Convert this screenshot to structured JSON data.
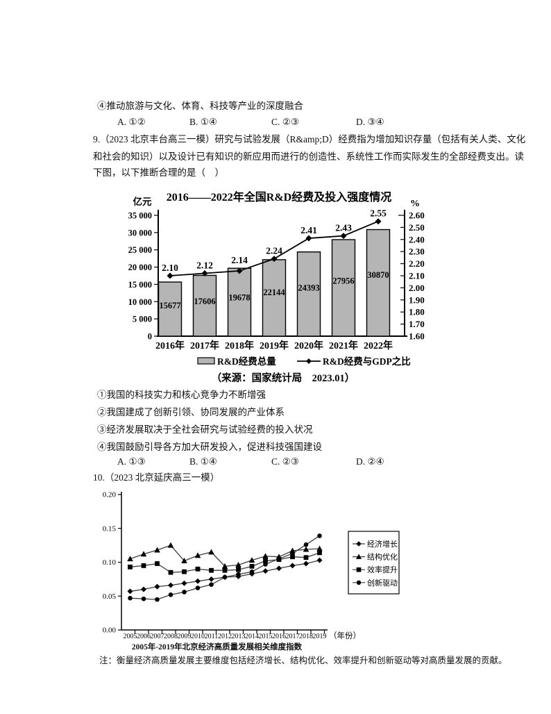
{
  "q8": {
    "statement4": "④推动旅游与文化、体育、科技等产业的深度融合",
    "options": [
      "A. ①②",
      "B. ①④",
      "C. ②③",
      "D. ③④"
    ]
  },
  "q9": {
    "lines": [
      "9.（2023 北京丰台高三一模）研究与试验发展（R&amp;D）经费指为增加知识存量（包括有关人类、文化",
      "和社会的知识）以及设计已有知识的新应用而进行的创造性、系统性工作而实际发生的全部经费支出。读",
      "下图，以下推断合理的是（　）"
    ],
    "statements": [
      "①我国的科技实力和核心竞争力不断增强",
      "②我国建成了创新引领、协同发展的产业体系",
      "③经济发展取决于全社会研究与试验经费的投入状况",
      "④我国鼓励引导各方加大研发投入，促进科技强国建设"
    ],
    "options": [
      "A. ①③",
      "B. ①④",
      "C. ②③",
      "D. ②④"
    ]
  },
  "q10": {
    "header": "10.（2023 北京延庆高三一模）",
    "chart_caption": "2005年-2019年北京经济高质量发展相关维度指数",
    "note": "注：衡量经济高质量发展主要维度包括经济增长、结构优化、效率提升和创新驱动等对高质量发展的贡献。"
  },
  "chart_data": [
    {
      "id": "rd-expenditure",
      "type": "bar+line",
      "title": "2016——2022年全国R&D经费及投入强度情况",
      "categories": [
        "2016年",
        "2017年",
        "2018年",
        "2019年",
        "2020年",
        "2021年",
        "2022年"
      ],
      "bar_series": {
        "name": "R&D经费总量",
        "unit": "亿元",
        "values": [
          15677,
          17606,
          19678,
          22144,
          24393,
          27956,
          30870
        ],
        "color": "#b5b5b5"
      },
      "line_series": {
        "name": "R&D经费与GDP之比",
        "unit": "%",
        "values": [
          2.1,
          2.12,
          2.14,
          2.24,
          2.41,
          2.43,
          2.55
        ]
      },
      "left_axis": {
        "label": "亿元",
        "min": 0,
        "max": 35000,
        "step": 5000,
        "tick_labels": [
          "0",
          "5 000",
          "10 000",
          "15 000",
          "20 000",
          "25 000",
          "30 000",
          "35 000"
        ]
      },
      "right_axis": {
        "label": "%",
        "min": 1.6,
        "max": 2.6,
        "step": 0.1
      },
      "legend_position": "bottom",
      "grid": false,
      "source": "（来源：国家统计局　2023.01）"
    },
    {
      "id": "beijing-quality-index",
      "type": "line",
      "title": "2005年-2019年北京经济高质量发展相关维度指数",
      "x": [
        2005,
        2006,
        2007,
        2008,
        2009,
        2010,
        2011,
        2012,
        2013,
        2014,
        2015,
        2016,
        2017,
        2018,
        2019
      ],
      "xlabel": "（年份）",
      "yaxis": {
        "min": 0,
        "max": 0.2,
        "step": 0.05,
        "tick_labels": [
          "0.00",
          "0.05",
          "0.10",
          "0.15",
          "0.20"
        ]
      },
      "series": [
        {
          "name": "经济增长",
          "marker": "diamond",
          "values": [
            0.057,
            0.06,
            0.064,
            0.066,
            0.069,
            0.072,
            0.075,
            0.078,
            0.079,
            0.083,
            0.087,
            0.091,
            0.095,
            0.098,
            0.103
          ]
        },
        {
          "name": "结构优化",
          "marker": "triangle",
          "values": [
            0.105,
            0.112,
            0.118,
            0.125,
            0.102,
            0.11,
            0.115,
            0.094,
            0.096,
            0.103,
            0.109,
            0.108,
            0.117,
            0.119,
            0.12
          ]
        },
        {
          "name": "效率提升",
          "marker": "square",
          "values": [
            0.093,
            0.095,
            0.098,
            0.085,
            0.086,
            0.09,
            0.088,
            0.088,
            0.089,
            0.094,
            0.102,
            0.104,
            0.108,
            0.107,
            0.114
          ]
        },
        {
          "name": "创新驱动",
          "marker": "circle",
          "values": [
            0.047,
            0.046,
            0.045,
            0.052,
            0.056,
            0.062,
            0.067,
            0.078,
            0.082,
            0.086,
            0.097,
            0.105,
            0.113,
            0.126,
            0.139
          ]
        }
      ],
      "legend_position": "right",
      "grid": false
    }
  ]
}
